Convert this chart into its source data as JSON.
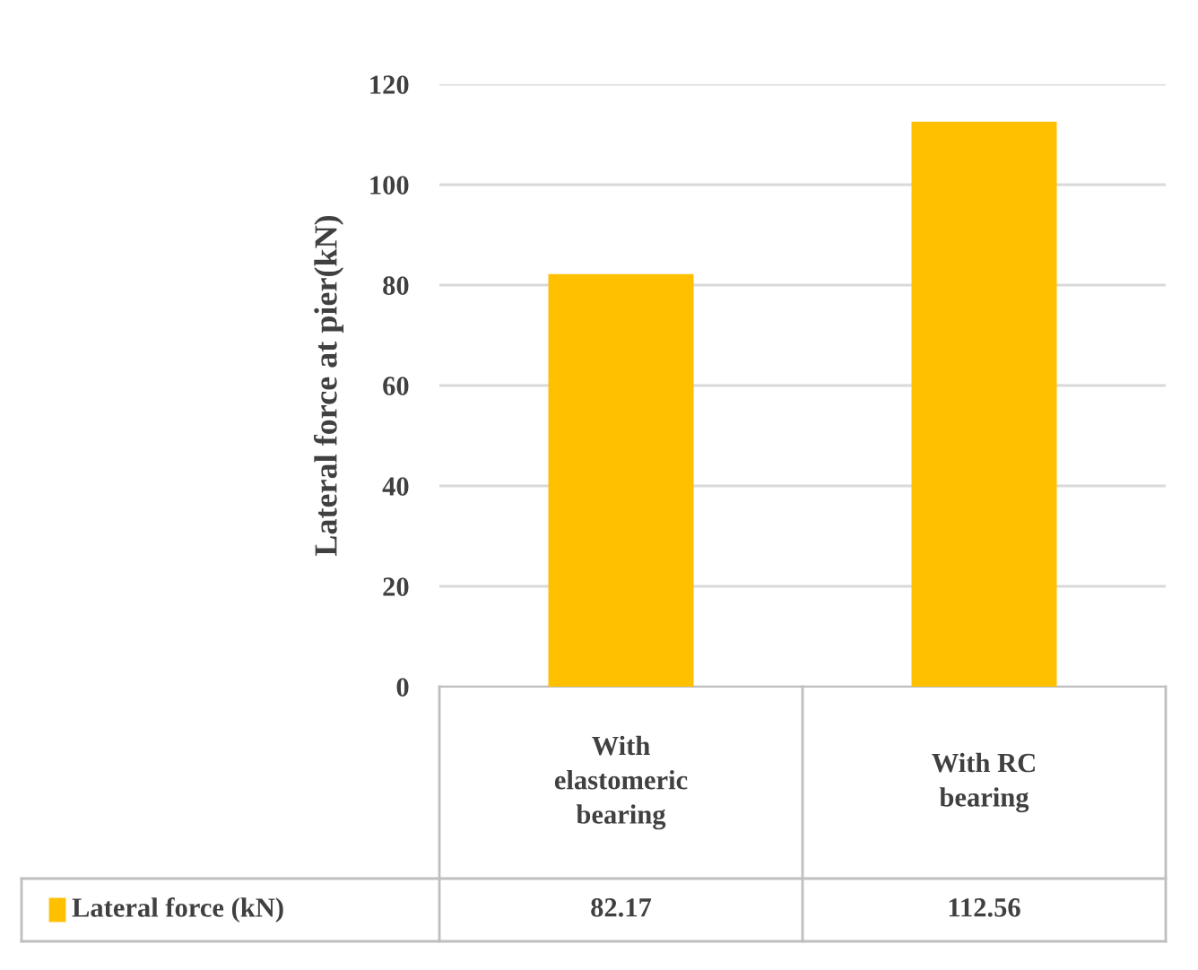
{
  "chart_data": {
    "type": "bar",
    "ylabel": "Lateral force at pier(kN)",
    "categories": [
      "With elastomeric bearing",
      "With RC bearing"
    ],
    "series": [
      {
        "name": "Lateral force (kN)",
        "color": "#ffc000",
        "values": [
          82.17,
          112.56
        ]
      }
    ],
    "ylim": [
      0,
      120
    ],
    "yticks": [
      0,
      20,
      40,
      60,
      80,
      100,
      120
    ],
    "grid": "y",
    "legend": "bottom",
    "data_labels": true
  }
}
